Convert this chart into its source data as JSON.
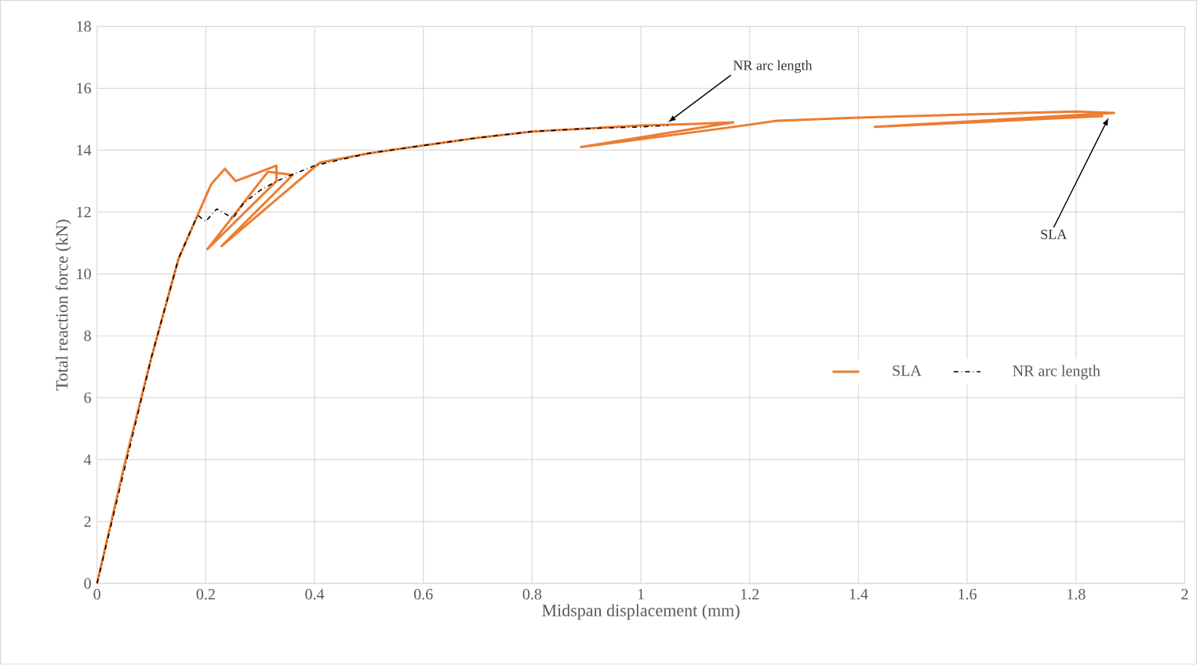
{
  "chart_data": {
    "type": "line",
    "xlabel": "Midspan displacement (mm)",
    "ylabel": "Total reaction force (kN)",
    "xlim": [
      0,
      2
    ],
    "ylim": [
      0,
      18
    ],
    "xticks": [
      0,
      0.2,
      0.4,
      0.6,
      0.8,
      1,
      1.2,
      1.4,
      1.6,
      1.8,
      2
    ],
    "yticks": [
      0,
      2,
      4,
      6,
      8,
      10,
      12,
      14,
      16,
      18
    ],
    "grid": true,
    "legend": "right",
    "series": [
      {
        "name": "SLA",
        "color": "#ed7d31",
        "line_style": "solid",
        "x": [
          0,
          0.05,
          0.1,
          0.15,
          0.19,
          0.21,
          0.235,
          0.255,
          0.3,
          0.33,
          0.33,
          0.203,
          0.314,
          0.36,
          0.229,
          0.41,
          0.5,
          0.6,
          0.7,
          0.8,
          0.9,
          1.0,
          1.1,
          1.17,
          0.89,
          1.17,
          1.25,
          1.4,
          1.5,
          1.6,
          1.7,
          1.8,
          1.87,
          1.43,
          1.85
        ],
        "values": [
          0,
          3.8,
          7.3,
          10.5,
          12.1,
          12.9,
          13.4,
          13.0,
          13.3,
          13.5,
          13.0,
          10.8,
          13.3,
          13.2,
          10.9,
          13.6,
          13.9,
          14.15,
          14.4,
          14.6,
          14.7,
          14.8,
          14.85,
          14.9,
          14.1,
          14.75,
          14.95,
          15.05,
          15.1,
          15.15,
          15.2,
          15.25,
          15.2,
          14.75,
          15.1
        ]
      },
      {
        "name": "NR arc length",
        "color": "#000000",
        "line_style": "dashdot",
        "x": [
          0,
          0.1,
          0.15,
          0.185,
          0.2,
          0.22,
          0.25,
          0.27,
          0.3,
          0.33,
          0.4,
          0.5,
          0.6,
          0.7,
          0.8,
          0.9,
          1.0,
          1.05
        ],
        "values": [
          0,
          7.3,
          10.5,
          11.9,
          11.7,
          12.1,
          11.8,
          12.3,
          12.7,
          13.0,
          13.5,
          13.9,
          14.15,
          14.4,
          14.6,
          14.7,
          14.75,
          14.8
        ]
      }
    ],
    "annotations": [
      {
        "text": "NR arc length",
        "x": 1.05,
        "y": 14.9
      },
      {
        "text": "SLA",
        "x": 1.86,
        "y": 15.05
      }
    ]
  }
}
